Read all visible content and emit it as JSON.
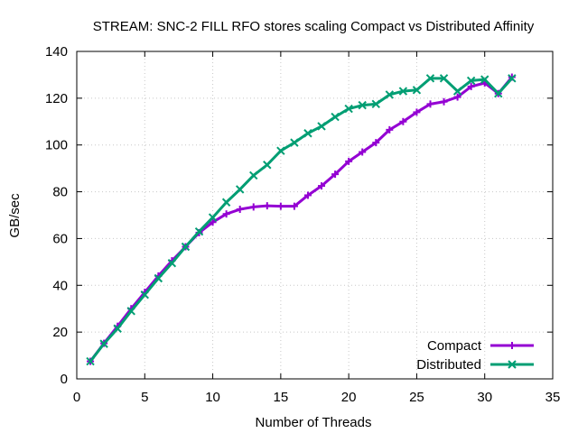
{
  "chart_data": {
    "type": "line",
    "title": "STREAM: SNC-2 FILL RFO stores scaling Compact vs Distributed Affinity",
    "xlabel": "Number of Threads",
    "ylabel": "GB/sec",
    "xlim": [
      0,
      35
    ],
    "ylim": [
      0,
      140
    ],
    "xticks": [
      0,
      5,
      10,
      15,
      20,
      25,
      30,
      35
    ],
    "yticks": [
      0,
      20,
      40,
      60,
      80,
      100,
      120,
      140
    ],
    "grid": true,
    "legend_position": "bottom-right",
    "x": [
      1,
      2,
      3,
      4,
      5,
      6,
      7,
      8,
      9,
      10,
      11,
      12,
      13,
      14,
      15,
      16,
      17,
      18,
      19,
      20,
      21,
      22,
      23,
      24,
      25,
      26,
      27,
      28,
      29,
      30,
      31,
      32
    ],
    "series": [
      {
        "name": "Compact",
        "color": "#9400d3",
        "marker": "plus",
        "values": [
          7.5,
          15.2,
          22.5,
          30.0,
          37.0,
          44.0,
          50.5,
          56.5,
          62.5,
          67.0,
          70.5,
          72.5,
          73.5,
          74.0,
          73.8,
          73.8,
          78.5,
          82.5,
          87.5,
          93.0,
          97.0,
          101.0,
          106.5,
          110.0,
          114.0,
          117.5,
          118.5,
          120.5,
          125.0,
          126.5,
          122.0,
          129.0
        ]
      },
      {
        "name": "Distributed",
        "color": "#009e73",
        "marker": "cross",
        "values": [
          7.5,
          15.0,
          21.5,
          29.0,
          36.0,
          43.0,
          49.5,
          56.5,
          63.0,
          69.0,
          75.5,
          81.0,
          87.0,
          91.5,
          97.5,
          101.0,
          105.0,
          108.0,
          112.0,
          115.5,
          117.0,
          117.5,
          121.5,
          123.0,
          123.5,
          128.5,
          128.5,
          123.0,
          127.5,
          128.0,
          122.0,
          128.5
        ]
      }
    ]
  }
}
